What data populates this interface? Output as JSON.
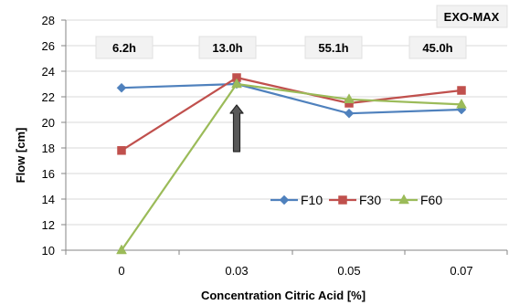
{
  "chart_data": {
    "type": "line",
    "x": [
      "0",
      "0.03",
      "0.05",
      "0.07"
    ],
    "series": [
      {
        "name": "F10",
        "values": [
          22.7,
          23.0,
          20.7,
          21.0
        ],
        "color": "#4f81bd",
        "marker": "diamond"
      },
      {
        "name": "F30",
        "values": [
          17.8,
          23.5,
          21.5,
          22.5
        ],
        "color": "#c0504d",
        "marker": "square"
      },
      {
        "name": "F60",
        "values": [
          10.0,
          23.0,
          21.8,
          21.4
        ],
        "color": "#9bbb59",
        "marker": "triangle"
      }
    ],
    "xlabel": "Concentration Citric Acid [%]",
    "ylabel": "Flow [cm]",
    "ylim": [
      10,
      28
    ],
    "yticks": [
      10,
      12,
      14,
      16,
      18,
      20,
      22,
      24,
      26,
      28
    ],
    "grid": "horizontal",
    "legend_position": "lower-right",
    "annotations": {
      "brand_label": "EXO-MAX",
      "time_labels": [
        "6.2h",
        "13.0h",
        "55.1h",
        "45.0h"
      ],
      "arrow_at": "0.03"
    }
  }
}
